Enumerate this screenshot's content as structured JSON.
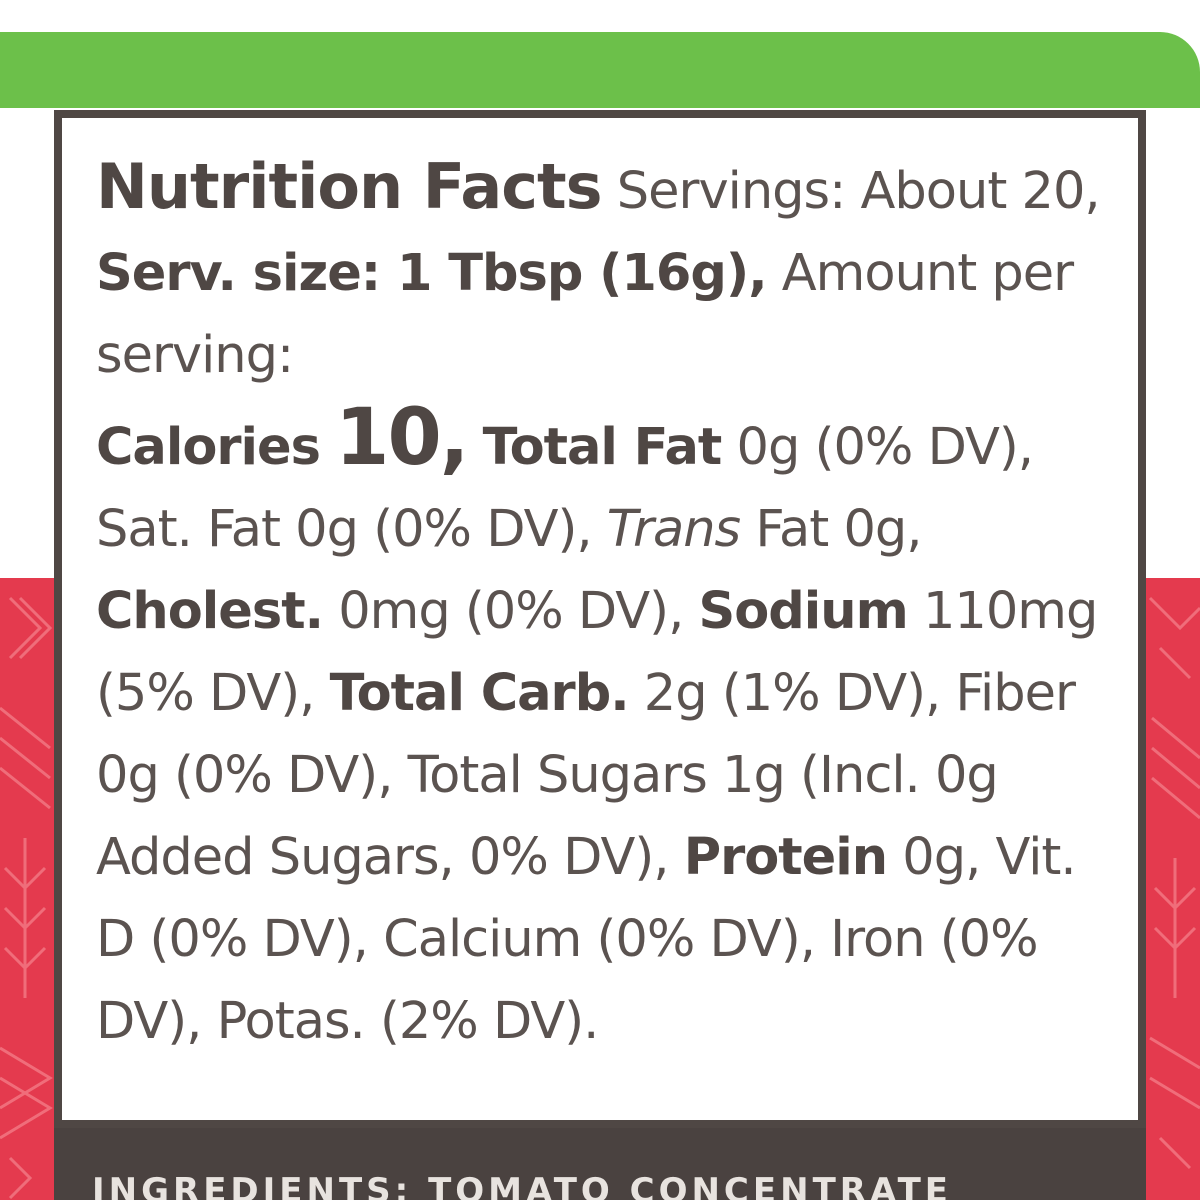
{
  "colors": {
    "green_band": "#6cc04a",
    "red_panel": "#e43a4e",
    "box_border": "#4f4744",
    "text": "#5b5350"
  },
  "label": {
    "title": "Nutrition Facts",
    "servings_label": "Servings:",
    "servings_value": "About 20,",
    "serving_size": "Serv. size: 1 Tbsp (16g),",
    "amount_per_serving": "Amount per serving:",
    "calories_label": "Calories",
    "calories_value": "10,",
    "total_fat_label": "Total Fat",
    "total_fat_value": "0g (0% DV), Sat. Fat 0g (0% DV),",
    "trans_label": "Trans",
    "trans_value": "Fat 0g,",
    "cholest_label": "Cholest.",
    "cholest_value": "0mg (0% DV),",
    "sodium_label": "Sodium",
    "sodium_value": "110mg (5% DV),",
    "total_carb_label": "Total Carb.",
    "total_carb_value": "2g (1% DV), Fiber 0g (0% DV), Total Sugars 1g (Incl. 0g Added Sugars, 0% DV),",
    "protein_label": "Protein",
    "protein_value": "0g, Vit. D (0% DV), Calcium (0% DV), Iron (0% DV), Potas. (2% DV)."
  },
  "ingredients_peek": "INGREDIENTS: TOMATO CONCENTRATE"
}
